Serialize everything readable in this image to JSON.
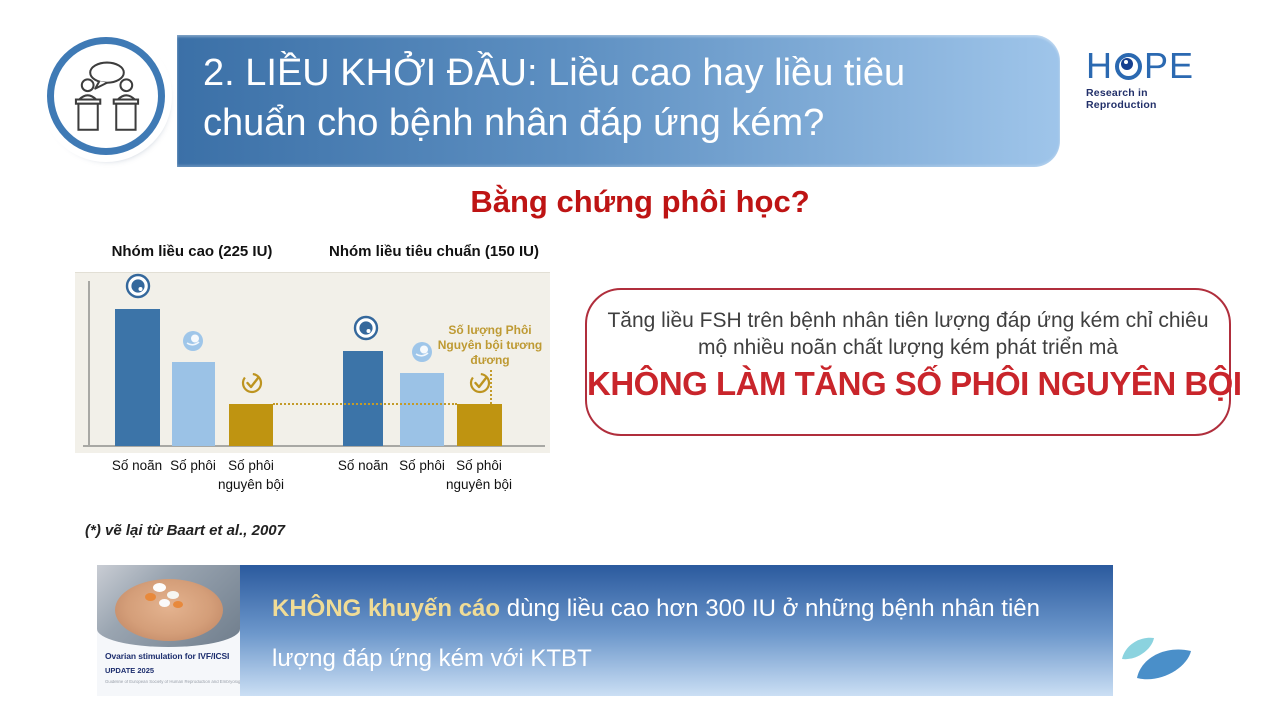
{
  "header": {
    "title_line1": "2. LIỀU KHỞI ĐẦU: Liều cao hay liều tiêu",
    "title_line2": "chuẩn cho bệnh nhân đáp ứng kém?",
    "badge_icon": "debate-podiums-icon",
    "logo": {
      "word_start": "H",
      "word_end": "PE",
      "o_icon": "eye-ring-icon",
      "subtitle": "Research in Reproduction"
    }
  },
  "section_heading": "Bằng chứng phôi học?",
  "chart_data": {
    "type": "bar",
    "title": "",
    "xlabel": "",
    "ylabel": "",
    "axes_labeled": false,
    "grid": false,
    "background": "#F2F0E9",
    "groups": [
      {
        "label": "Nhóm liều cao (225 IU)",
        "categories": [
          "Số noãn",
          "Số phôi",
          "Số phôi nguyên bội"
        ],
        "values_rel": [
          100,
          61,
          31
        ]
      },
      {
        "label": "Nhóm liều tiêu chuẩn (150 IU)",
        "categories": [
          "Số noãn",
          "Số phôi",
          "Số phôi nguyên bội"
        ],
        "values_rel": [
          69,
          53,
          31
        ]
      }
    ],
    "series_icons": [
      "oocyte-icon",
      "embryo-icon",
      "check-circle-icon"
    ],
    "annotation": "Số lượng Phôi Nguyên bội tương đương",
    "annotation_meaning": "equal-euploid-embryo-count dotted reference line linking the two gold bars",
    "colors": {
      "series": [
        "#3C74A8",
        "#9BC2E6",
        "#BF9411"
      ],
      "annotation": "#BE9A33",
      "axis": "#A8A8A4"
    },
    "footnote": "(*) vẽ lại từ Baart et al., 2007"
  },
  "conclusion_box": {
    "line1": "Tăng liều FSH trên bệnh nhân tiên lượng đáp ứng kém chỉ chiêu",
    "line2": "mộ nhiều noãn chất lượng kém phát triển mà",
    "emphasis": "KHÔNG LÀM TĂNG SỐ PHÔI NGUYÊN BỘI",
    "border_color": "#B02E3C",
    "emphasis_color": "#C9252B"
  },
  "footer": {
    "cover": {
      "title": "Ovarian stimulation for IVF/ICSI",
      "update": "UPDATE 2025",
      "small": "Guideline of European Society of Human Reproduction and Embryology",
      "image": "hands-holding-pills-photo"
    },
    "highlight": "KHÔNG khuyến cáo",
    "line1_rest": " dùng liều cao hơn 300 IU ở những bệnh nhân tiên",
    "line2": "lượng đáp ứng kém với KTBT",
    "highlight_color": "#F0DC96"
  },
  "footer_logo_icon": "two-leaves-icon"
}
